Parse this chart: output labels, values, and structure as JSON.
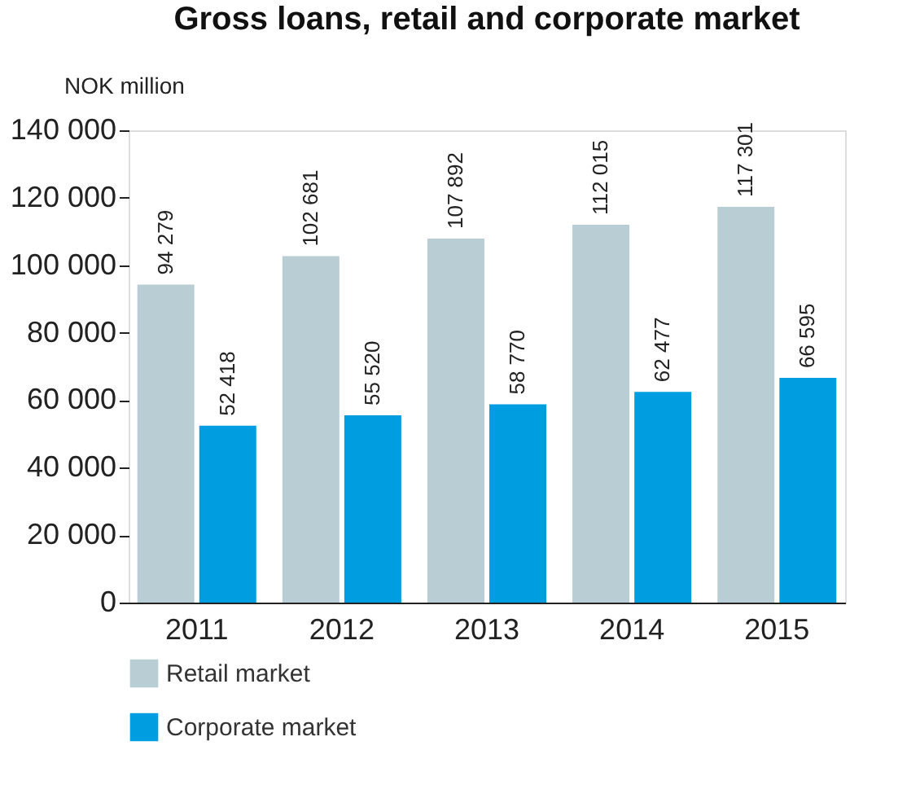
{
  "chart_data": {
    "type": "bar",
    "title": "Gross loans, retail and corporate market",
    "ylabel": "NOK million",
    "categories": [
      "2011",
      "2012",
      "2013",
      "2014",
      "2015"
    ],
    "series": [
      {
        "name": "Retail market",
        "color": "#b9cdd4",
        "values": [
          94279,
          102681,
          107892,
          112015,
          117301
        ],
        "value_labels": [
          "94 279",
          "102 681",
          "107 892",
          "112 015",
          "117 301"
        ]
      },
      {
        "name": "Corporate market",
        "color": "#009ee0",
        "values": [
          52418,
          55520,
          58770,
          62477,
          66595
        ],
        "value_labels": [
          "52 418",
          "55 520",
          "58 770",
          "62 477",
          "66 595"
        ]
      }
    ],
    "ylim": [
      0,
      140000
    ],
    "yticks": [
      {
        "value": 0,
        "label": "0"
      },
      {
        "value": 20000,
        "label": "20 000"
      },
      {
        "value": 40000,
        "label": "40 000"
      },
      {
        "value": 60000,
        "label": "60 000"
      },
      {
        "value": 80000,
        "label": "80 000"
      },
      {
        "value": 100000,
        "label": "100 000"
      },
      {
        "value": 120000,
        "label": "120 000"
      },
      {
        "value": 140000,
        "label": "140 000"
      }
    ],
    "grid": false,
    "legend": "bottom"
  }
}
